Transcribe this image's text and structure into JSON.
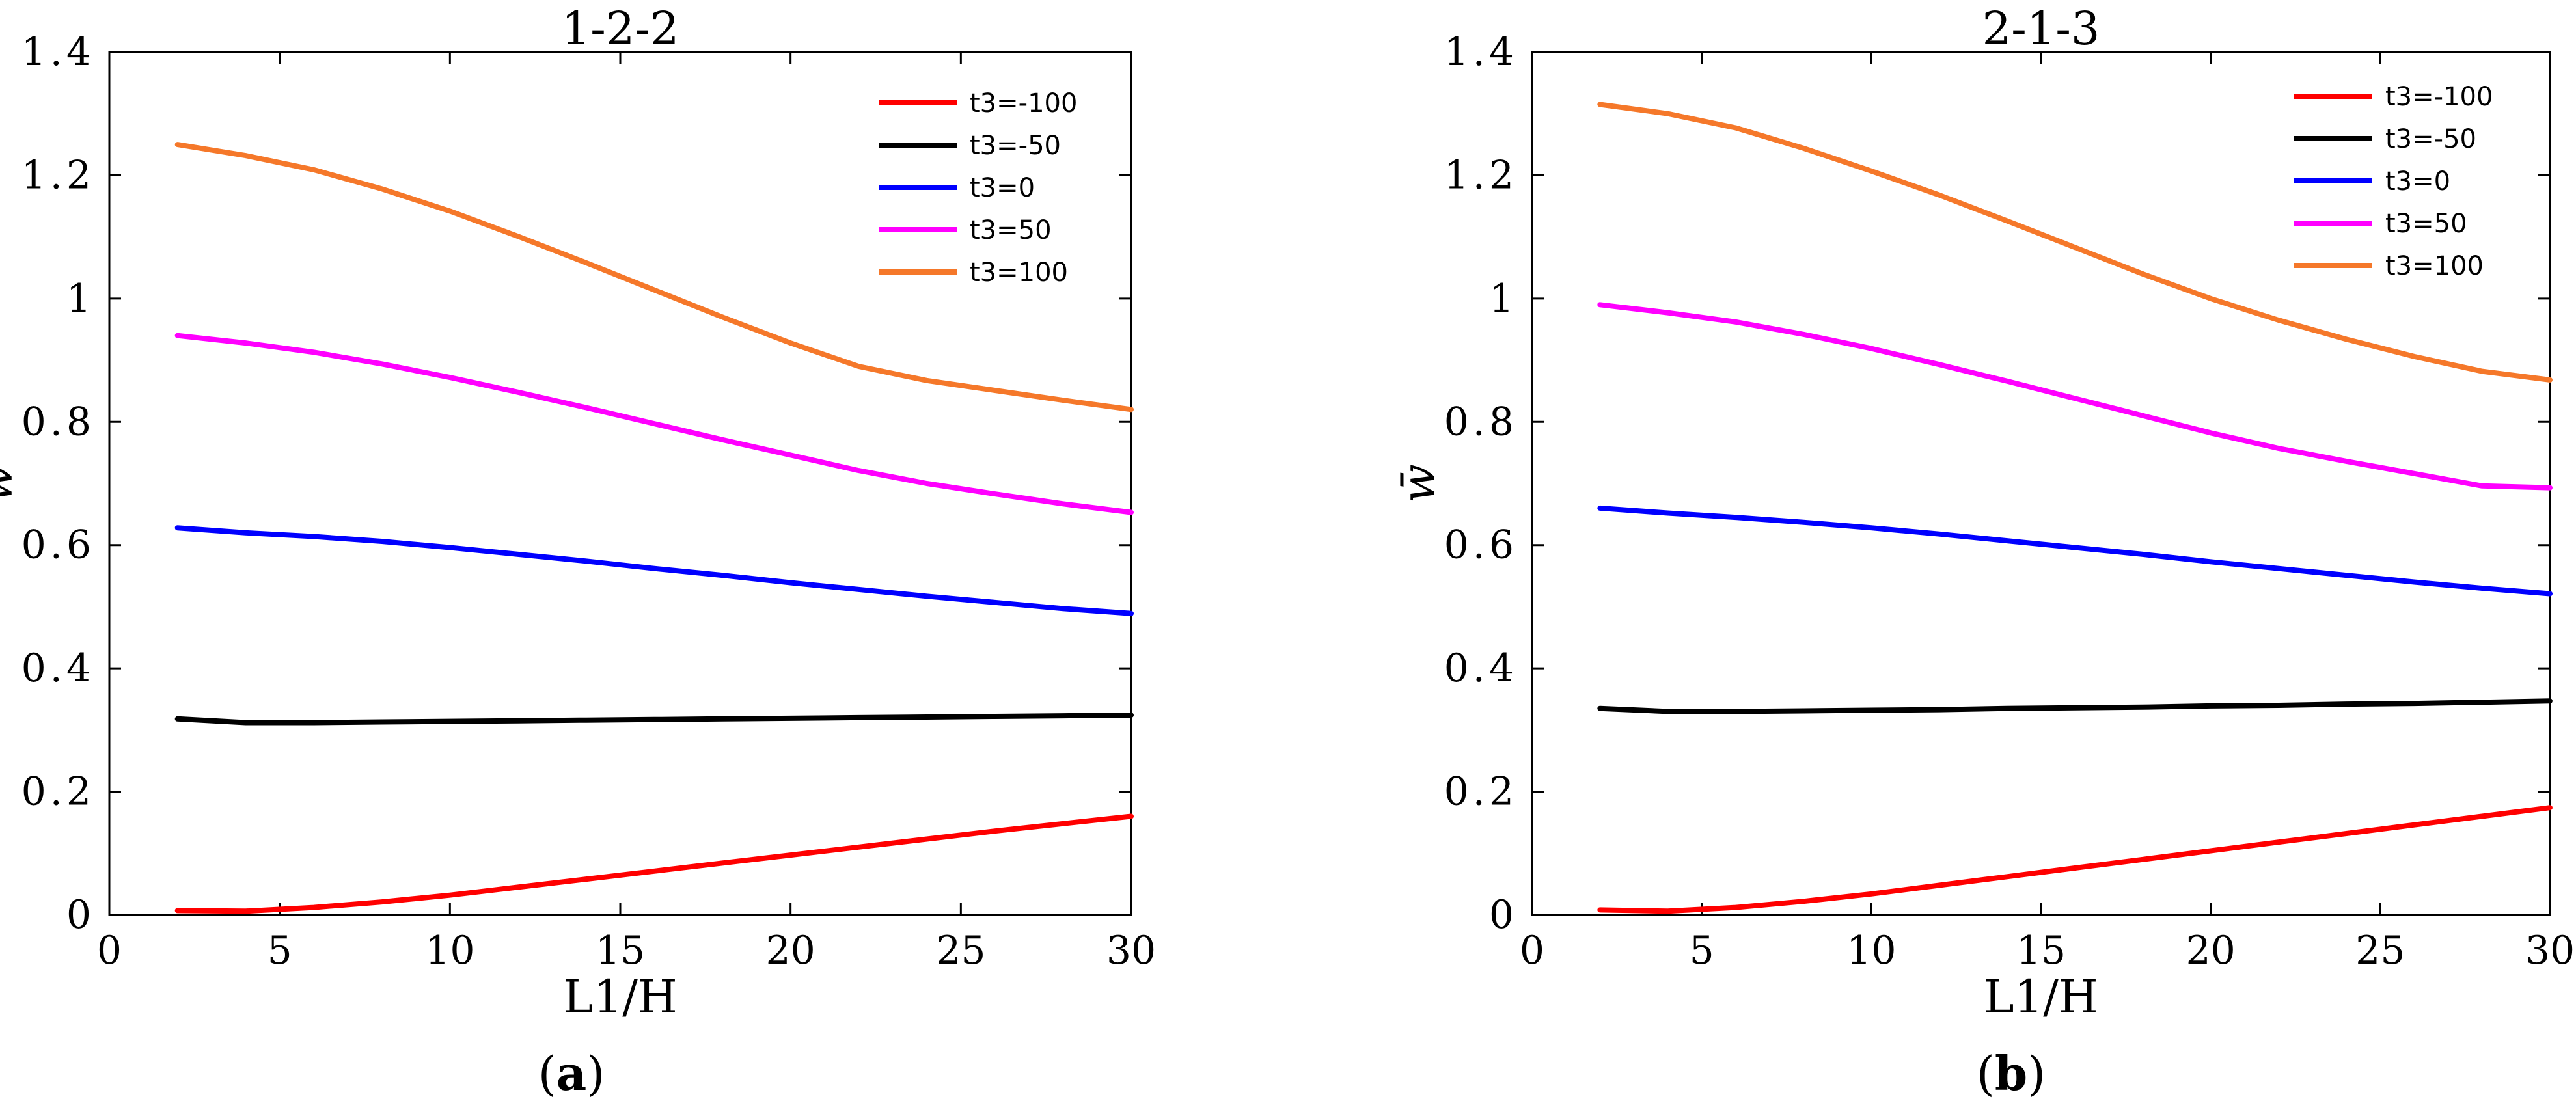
{
  "chart_data": [
    {
      "type": "line",
      "panel_label": "a",
      "title": "1-2-2",
      "xlabel": "L1/H",
      "ylabel": "w̄",
      "xlim": [
        0,
        30
      ],
      "ylim": [
        0,
        1.4
      ],
      "xticks": [
        0,
        5,
        10,
        15,
        20,
        25,
        30
      ],
      "yticks": [
        0,
        0.2,
        0.4,
        0.6,
        0.8,
        1,
        1.2,
        1.4
      ],
      "xtick_labels": [
        "0",
        "5",
        "10",
        "15",
        "20",
        "25",
        "30"
      ],
      "ytick_labels": [
        "0",
        "0.2",
        "0.4",
        "0.6",
        "0.8",
        "1",
        "1.2",
        "1.4"
      ],
      "legend_position": "top-right",
      "x": [
        2,
        4,
        6,
        8,
        10,
        12,
        14,
        16,
        18,
        20,
        22,
        24,
        26,
        28,
        30
      ],
      "series": [
        {
          "name": "t3=-100",
          "color": "#ff0000",
          "values": [
            0.007,
            0.006,
            0.012,
            0.021,
            0.032,
            0.045,
            0.058,
            0.071,
            0.084,
            0.097,
            0.11,
            0.123,
            0.136,
            0.148,
            0.16
          ]
        },
        {
          "name": "t3=-50",
          "color": "#000000",
          "values": [
            0.318,
            0.312,
            0.312,
            0.313,
            0.314,
            0.315,
            0.316,
            0.317,
            0.318,
            0.319,
            0.32,
            0.321,
            0.322,
            0.323,
            0.324
          ]
        },
        {
          "name": "t3=0",
          "color": "#0000ff",
          "values": [
            0.628,
            0.62,
            0.614,
            0.606,
            0.596,
            0.585,
            0.574,
            0.562,
            0.551,
            0.539,
            0.528,
            0.517,
            0.507,
            0.497,
            0.489
          ]
        },
        {
          "name": "t3=50",
          "color": "#ff00ff",
          "values": [
            0.94,
            0.928,
            0.913,
            0.894,
            0.872,
            0.848,
            0.823,
            0.797,
            0.771,
            0.746,
            0.721,
            0.7,
            0.683,
            0.667,
            0.653
          ]
        },
        {
          "name": "t3=100",
          "color": "#f5782a",
          "values": [
            1.25,
            1.232,
            1.209,
            1.178,
            1.142,
            1.101,
            1.058,
            1.014,
            0.97,
            0.928,
            0.89,
            0.867,
            0.851,
            0.835,
            0.82
          ]
        }
      ]
    },
    {
      "type": "line",
      "panel_label": "b",
      "title": "2-1-3",
      "xlabel": "L1/H",
      "ylabel": "w̄",
      "xlim": [
        0,
        30
      ],
      "ylim": [
        0,
        1.4
      ],
      "xticks": [
        0,
        5,
        10,
        15,
        20,
        25,
        30
      ],
      "yticks": [
        0,
        0.2,
        0.4,
        0.6,
        0.8,
        1,
        1.2,
        1.4
      ],
      "xtick_labels": [
        "0",
        "5",
        "10",
        "15",
        "20",
        "25",
        "30"
      ],
      "ytick_labels": [
        "0",
        "0.2",
        "0.4",
        "0.6",
        "0.8",
        "1",
        "1.2",
        "1.4"
      ],
      "legend_position": "top-right",
      "x": [
        2,
        4,
        6,
        8,
        10,
        12,
        14,
        16,
        18,
        20,
        22,
        24,
        26,
        28,
        30
      ],
      "series": [
        {
          "name": "t3=-100",
          "color": "#ff0000",
          "values": [
            0.008,
            0.006,
            0.012,
            0.022,
            0.034,
            0.048,
            0.062,
            0.076,
            0.09,
            0.104,
            0.118,
            0.132,
            0.146,
            0.16,
            0.174
          ]
        },
        {
          "name": "t3=-50",
          "color": "#000000",
          "values": [
            0.335,
            0.33,
            0.33,
            0.331,
            0.332,
            0.333,
            0.335,
            0.336,
            0.337,
            0.339,
            0.34,
            0.342,
            0.343,
            0.345,
            0.347
          ]
        },
        {
          "name": "t3=0",
          "color": "#0000ff",
          "values": [
            0.66,
            0.652,
            0.645,
            0.637,
            0.628,
            0.618,
            0.607,
            0.596,
            0.585,
            0.573,
            0.562,
            0.551,
            0.54,
            0.53,
            0.521
          ]
        },
        {
          "name": "t3=50",
          "color": "#ff00ff",
          "values": [
            0.99,
            0.977,
            0.962,
            0.942,
            0.919,
            0.893,
            0.866,
            0.838,
            0.81,
            0.782,
            0.757,
            0.736,
            0.716,
            0.696,
            0.693
          ]
        },
        {
          "name": "t3=100",
          "color": "#f5782a",
          "values": [
            1.315,
            1.3,
            1.277,
            1.244,
            1.207,
            1.168,
            1.126,
            1.083,
            1.04,
            1.0,
            0.965,
            0.934,
            0.906,
            0.882,
            0.868
          ]
        }
      ]
    }
  ]
}
